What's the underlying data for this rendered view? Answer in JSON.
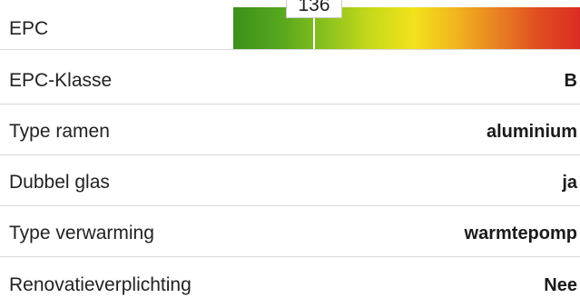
{
  "epc": {
    "label": "EPC",
    "score": "136"
  },
  "properties": [
    {
      "label": "EPC-Klasse",
      "value": "B"
    },
    {
      "label": "Type ramen",
      "value": "aluminium"
    },
    {
      "label": "Dubbel glas",
      "value": "ja"
    },
    {
      "label": "Type verwarming",
      "value": "warmtepomp"
    },
    {
      "label": "Renovatieverplichting",
      "value": "Nee"
    }
  ],
  "colors": {
    "scale_start": "#3d8f1c",
    "scale_mid": "#f2e21b",
    "scale_end": "#dc2c22",
    "divider": "#d9d9d9"
  }
}
